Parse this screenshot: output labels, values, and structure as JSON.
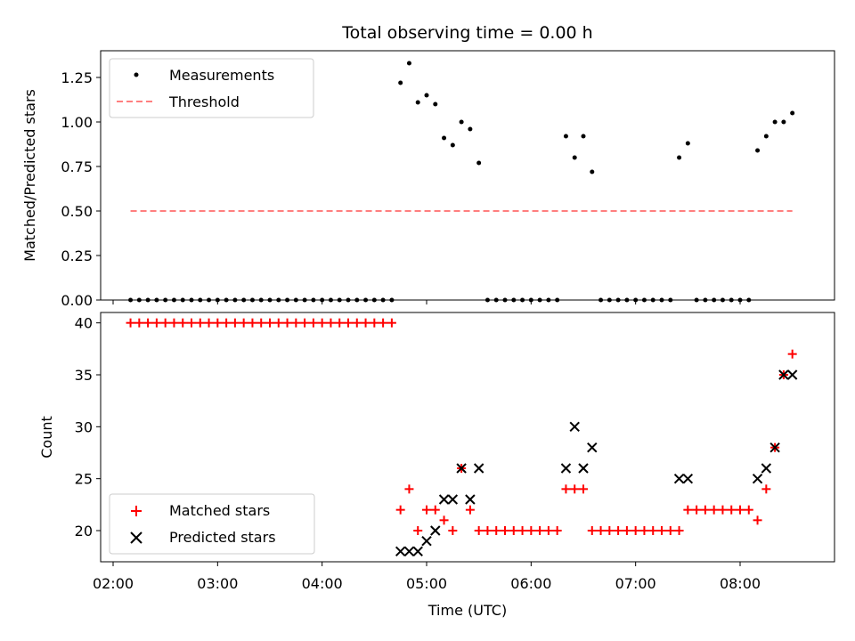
{
  "title": "Total observing time = 0.00 h",
  "xlabel": "Time (UTC)",
  "x_ticks": [
    "02:00",
    "03:00",
    "04:00",
    "05:00",
    "06:00",
    "07:00",
    "08:00"
  ],
  "colors": {
    "matched": "#ff0000",
    "predicted": "#000000",
    "threshold": "#ff7f7f",
    "measurement": "#000000"
  },
  "chart_data": [
    {
      "type": "scatter",
      "ylabel": "Matched/Predicted stars",
      "ylim": [
        0,
        1.4
      ],
      "yticks": [
        "0.00",
        "0.25",
        "0.50",
        "0.75",
        "1.00",
        "1.25"
      ],
      "legend_position": "upper-left",
      "series": [
        {
          "name": "Measurements",
          "points": [
            [
              "02:10",
              0
            ],
            [
              "02:15",
              0
            ],
            [
              "02:20",
              0
            ],
            [
              "02:25",
              0
            ],
            [
              "02:30",
              0
            ],
            [
              "02:35",
              0
            ],
            [
              "02:40",
              0
            ],
            [
              "02:45",
              0
            ],
            [
              "02:50",
              0
            ],
            [
              "02:55",
              0
            ],
            [
              "03:00",
              0
            ],
            [
              "03:05",
              0
            ],
            [
              "03:10",
              0
            ],
            [
              "03:15",
              0
            ],
            [
              "03:20",
              0
            ],
            [
              "03:25",
              0
            ],
            [
              "03:30",
              0
            ],
            [
              "03:35",
              0
            ],
            [
              "03:40",
              0
            ],
            [
              "03:45",
              0
            ],
            [
              "03:50",
              0
            ],
            [
              "03:55",
              0
            ],
            [
              "04:00",
              0
            ],
            [
              "04:05",
              0
            ],
            [
              "04:10",
              0
            ],
            [
              "04:15",
              0
            ],
            [
              "04:20",
              0
            ],
            [
              "04:25",
              0
            ],
            [
              "04:30",
              0
            ],
            [
              "04:35",
              0
            ],
            [
              "04:40",
              0
            ],
            [
              "04:45",
              1.22
            ],
            [
              "04:50",
              1.33
            ],
            [
              "04:55",
              1.11
            ],
            [
              "05:00",
              1.15
            ],
            [
              "05:05",
              1.1
            ],
            [
              "05:10",
              0.91
            ],
            [
              "05:15",
              0.87
            ],
            [
              "05:20",
              1.0
            ],
            [
              "05:25",
              0.96
            ],
            [
              "05:30",
              0.77
            ],
            [
              "05:35",
              0
            ],
            [
              "05:40",
              0
            ],
            [
              "05:45",
              0
            ],
            [
              "05:50",
              0
            ],
            [
              "05:55",
              0
            ],
            [
              "06:00",
              0
            ],
            [
              "06:05",
              0
            ],
            [
              "06:10",
              0
            ],
            [
              "06:15",
              0
            ],
            [
              "06:20",
              0.92
            ],
            [
              "06:25",
              0.8
            ],
            [
              "06:30",
              0.92
            ],
            [
              "06:35",
              0.72
            ],
            [
              "06:40",
              0
            ],
            [
              "06:45",
              0
            ],
            [
              "06:50",
              0
            ],
            [
              "06:55",
              0
            ],
            [
              "07:00",
              0
            ],
            [
              "07:05",
              0
            ],
            [
              "07:10",
              0
            ],
            [
              "07:15",
              0
            ],
            [
              "07:20",
              0
            ],
            [
              "07:25",
              0.8
            ],
            [
              "07:30",
              0.88
            ],
            [
              "07:35",
              0
            ],
            [
              "07:40",
              0
            ],
            [
              "07:45",
              0
            ],
            [
              "07:50",
              0
            ],
            [
              "07:55",
              0
            ],
            [
              "08:00",
              0
            ],
            [
              "08:05",
              0
            ],
            [
              "08:10",
              0.84
            ],
            [
              "08:15",
              0.92
            ],
            [
              "08:20",
              1.0
            ],
            [
              "08:25",
              1.0
            ],
            [
              "08:30",
              1.05
            ]
          ]
        },
        {
          "name": "Threshold",
          "style": "dashed",
          "points": [
            [
              "02:10",
              0.5
            ],
            [
              "08:30",
              0.5
            ]
          ]
        }
      ]
    },
    {
      "type": "scatter",
      "ylabel": "Count",
      "ylim": [
        17,
        41
      ],
      "yticks": [
        "20",
        "25",
        "30",
        "35",
        "40"
      ],
      "legend_position": "lower-left",
      "series": [
        {
          "name": "Matched stars",
          "marker": "+",
          "points": [
            [
              "02:10",
              40
            ],
            [
              "02:15",
              40
            ],
            [
              "02:20",
              40
            ],
            [
              "02:25",
              40
            ],
            [
              "02:30",
              40
            ],
            [
              "02:35",
              40
            ],
            [
              "02:40",
              40
            ],
            [
              "02:45",
              40
            ],
            [
              "02:50",
              40
            ],
            [
              "02:55",
              40
            ],
            [
              "03:00",
              40
            ],
            [
              "03:05",
              40
            ],
            [
              "03:10",
              40
            ],
            [
              "03:15",
              40
            ],
            [
              "03:20",
              40
            ],
            [
              "03:25",
              40
            ],
            [
              "03:30",
              40
            ],
            [
              "03:35",
              40
            ],
            [
              "03:40",
              40
            ],
            [
              "03:45",
              40
            ],
            [
              "03:50",
              40
            ],
            [
              "03:55",
              40
            ],
            [
              "04:00",
              40
            ],
            [
              "04:05",
              40
            ],
            [
              "04:10",
              40
            ],
            [
              "04:15",
              40
            ],
            [
              "04:20",
              40
            ],
            [
              "04:25",
              40
            ],
            [
              "04:30",
              40
            ],
            [
              "04:35",
              40
            ],
            [
              "04:40",
              40
            ],
            [
              "04:45",
              22
            ],
            [
              "04:50",
              24
            ],
            [
              "04:55",
              20
            ],
            [
              "05:00",
              22
            ],
            [
              "05:05",
              22
            ],
            [
              "05:10",
              21
            ],
            [
              "05:15",
              20
            ],
            [
              "05:20",
              26
            ],
            [
              "05:25",
              22
            ],
            [
              "05:30",
              20
            ],
            [
              "05:35",
              20
            ],
            [
              "05:40",
              20
            ],
            [
              "05:45",
              20
            ],
            [
              "05:50",
              20
            ],
            [
              "05:55",
              20
            ],
            [
              "06:00",
              20
            ],
            [
              "06:05",
              20
            ],
            [
              "06:10",
              20
            ],
            [
              "06:15",
              20
            ],
            [
              "06:20",
              24
            ],
            [
              "06:25",
              24
            ],
            [
              "06:30",
              24
            ],
            [
              "06:35",
              20
            ],
            [
              "06:40",
              20
            ],
            [
              "06:45",
              20
            ],
            [
              "06:50",
              20
            ],
            [
              "06:55",
              20
            ],
            [
              "07:00",
              20
            ],
            [
              "07:05",
              20
            ],
            [
              "07:10",
              20
            ],
            [
              "07:15",
              20
            ],
            [
              "07:20",
              20
            ],
            [
              "07:25",
              20
            ],
            [
              "07:30",
              22
            ],
            [
              "07:35",
              22
            ],
            [
              "07:40",
              22
            ],
            [
              "07:45",
              22
            ],
            [
              "07:50",
              22
            ],
            [
              "07:55",
              22
            ],
            [
              "08:00",
              22
            ],
            [
              "08:05",
              22
            ],
            [
              "08:10",
              21
            ],
            [
              "08:15",
              24
            ],
            [
              "08:20",
              28
            ],
            [
              "08:25",
              35
            ],
            [
              "08:30",
              37
            ]
          ]
        },
        {
          "name": "Predicted stars",
          "marker": "x",
          "points": [
            [
              "04:45",
              18
            ],
            [
              "04:50",
              18
            ],
            [
              "04:55",
              18
            ],
            [
              "05:00",
              19
            ],
            [
              "05:05",
              20
            ],
            [
              "05:10",
              23
            ],
            [
              "05:15",
              23
            ],
            [
              "05:20",
              26
            ],
            [
              "05:25",
              23
            ],
            [
              "05:30",
              26
            ],
            [
              "06:20",
              26
            ],
            [
              "06:25",
              30
            ],
            [
              "06:30",
              26
            ],
            [
              "06:35",
              28
            ],
            [
              "07:25",
              25
            ],
            [
              "07:30",
              25
            ],
            [
              "08:10",
              25
            ],
            [
              "08:15",
              26
            ],
            [
              "08:20",
              28
            ],
            [
              "08:25",
              35
            ],
            [
              "08:30",
              35
            ]
          ]
        }
      ]
    }
  ]
}
